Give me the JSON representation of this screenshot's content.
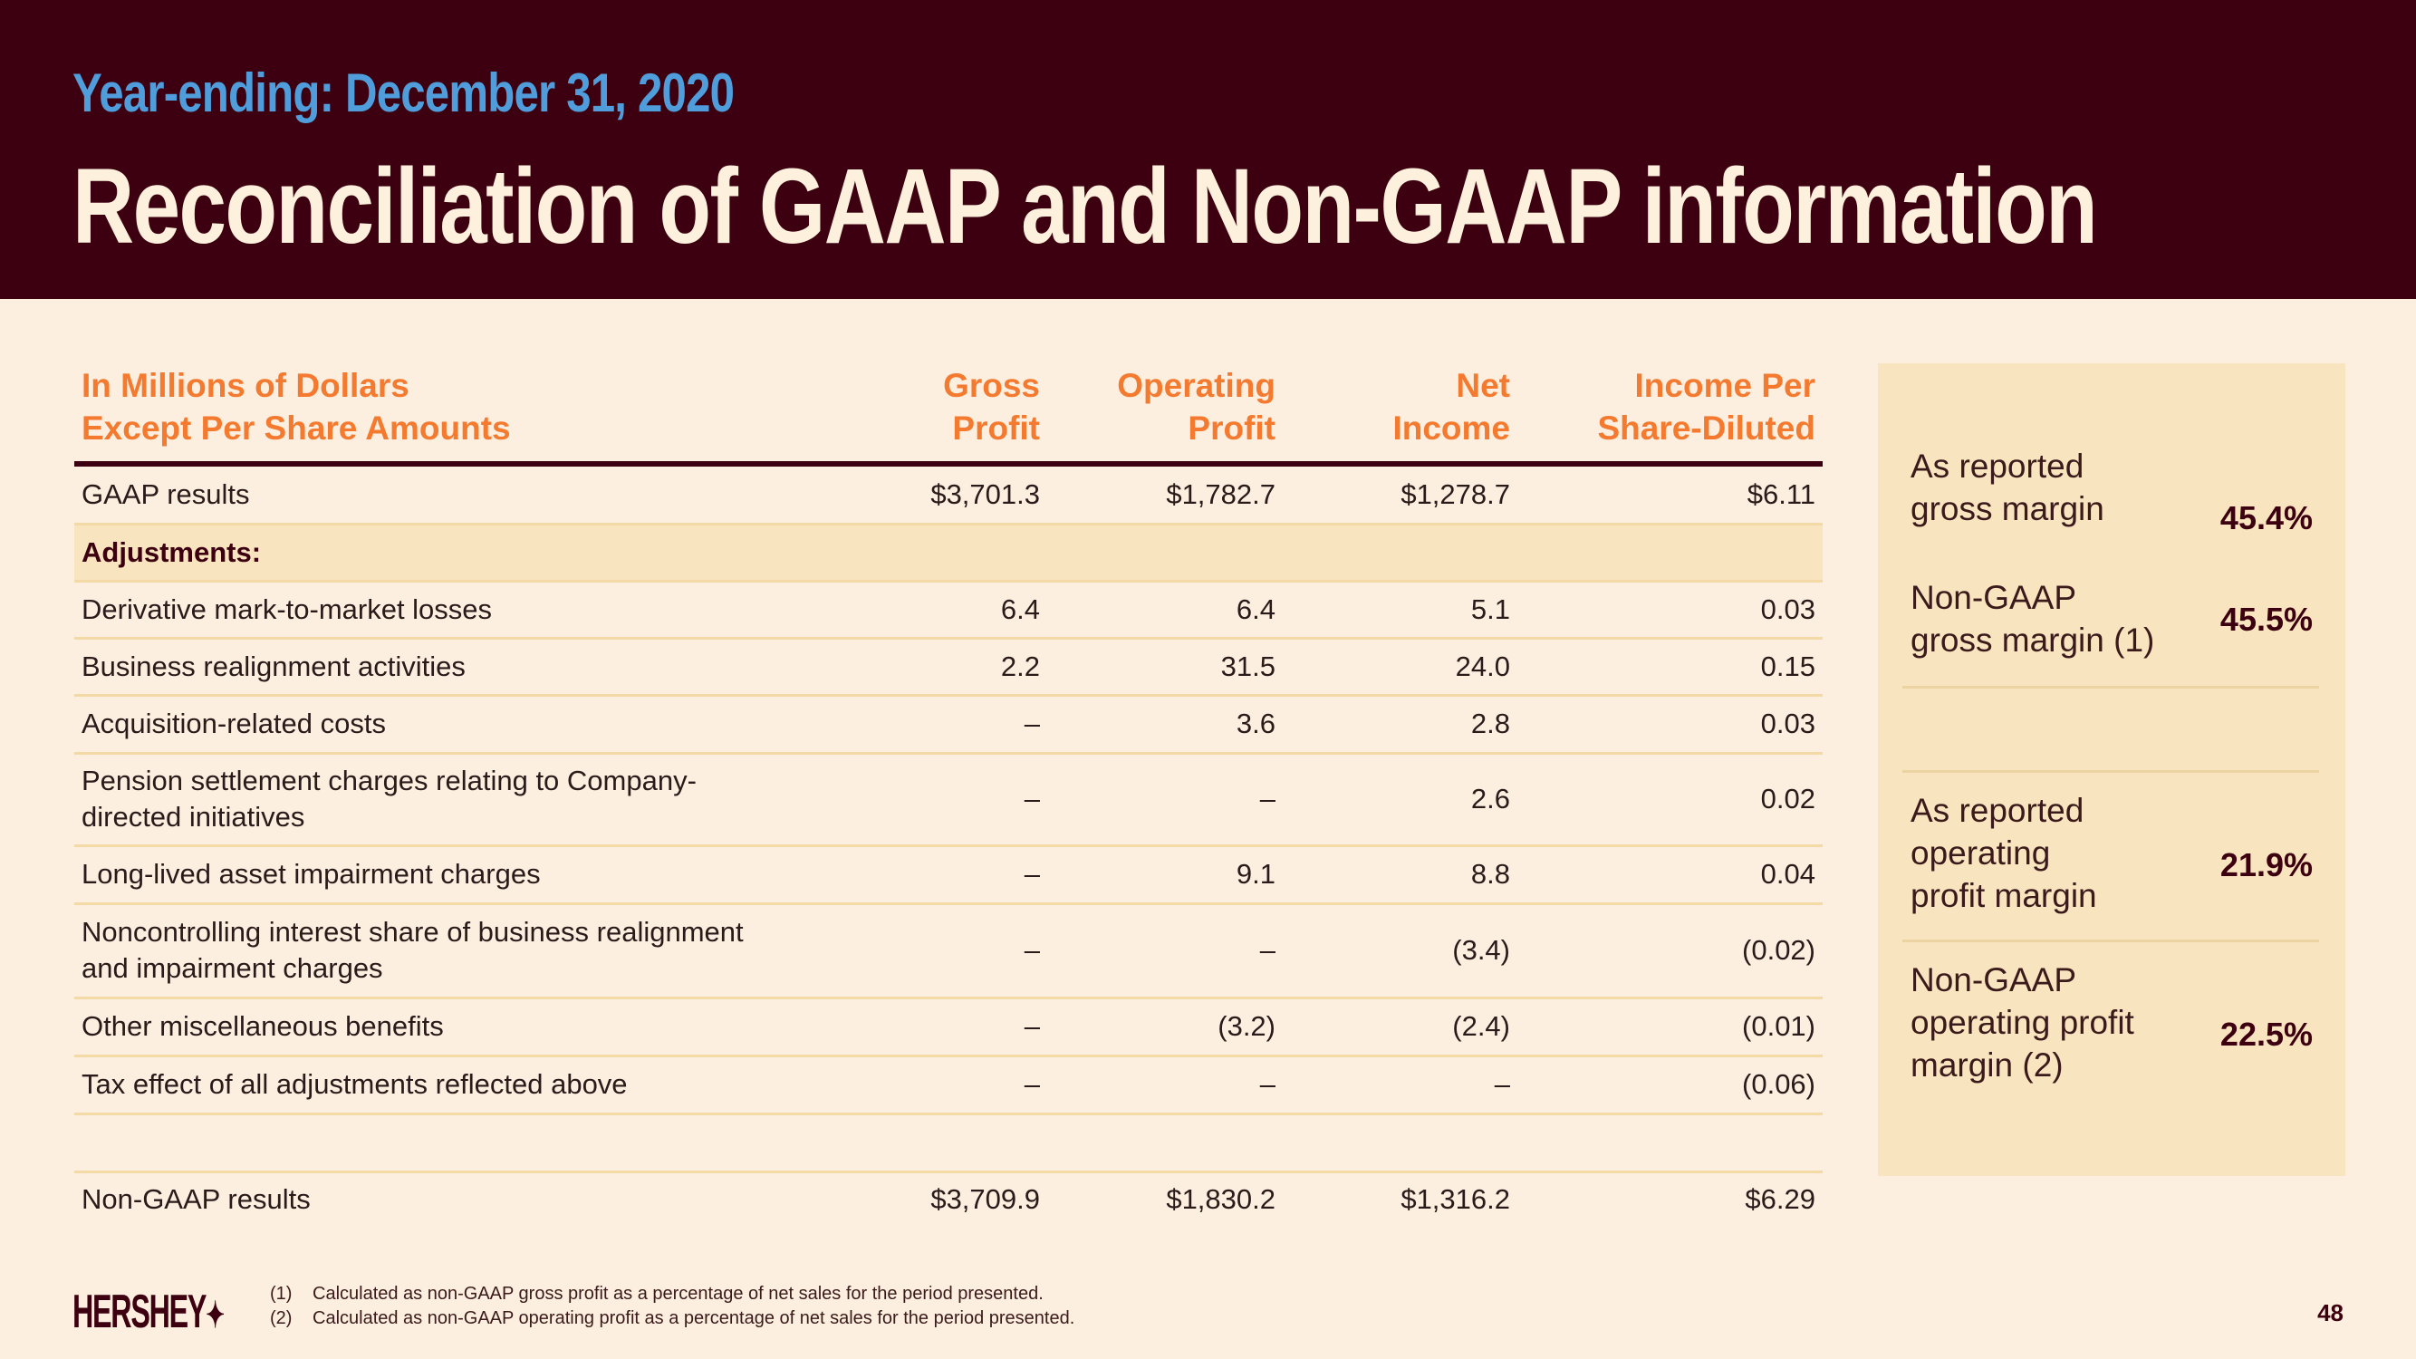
{
  "header": {
    "subtitle": "Year-ending: December 31, 2020",
    "title": "Reconciliation of GAAP and Non-GAAP information"
  },
  "table": {
    "headers": [
      [
        "In Millions of Dollars",
        "Except Per Share Amounts"
      ],
      [
        "Gross",
        "Profit"
      ],
      [
        "Operating",
        "Profit"
      ],
      [
        "Net",
        "Income"
      ],
      [
        "Income Per",
        "Share-Diluted"
      ]
    ],
    "rows": [
      {
        "label": "GAAP results",
        "values": [
          "$3,701.3",
          "$1,782.7",
          "$1,278.7",
          "$6.11"
        ]
      },
      {
        "label": "Adjustments:",
        "values": [
          "",
          "",
          "",
          ""
        ]
      },
      {
        "label": "Derivative mark-to-market losses",
        "values": [
          "6.4",
          "6.4",
          "5.1",
          "0.03"
        ]
      },
      {
        "label": "Business realignment activities",
        "values": [
          "2.2",
          "31.5",
          "24.0",
          "0.15"
        ]
      },
      {
        "label": "Acquisition-related costs",
        "values": [
          "–",
          "3.6",
          "2.8",
          "0.03"
        ]
      },
      {
        "label": "Pension settlement charges relating to Company-\ndirected initiatives",
        "values": [
          "–",
          "–",
          "2.6",
          "0.02"
        ]
      },
      {
        "label": "Long-lived asset impairment charges",
        "values": [
          "–",
          "9.1",
          "8.8",
          "0.04"
        ]
      },
      {
        "label": "Noncontrolling interest share of business realignment\nand impairment charges",
        "values": [
          "–",
          "–",
          "(3.4)",
          "(0.02)"
        ]
      },
      {
        "label": "Other miscellaneous benefits",
        "values": [
          "–",
          "(3.2)",
          "(2.4)",
          "(0.01)"
        ]
      },
      {
        "label": "Tax effect of all adjustments reflected above",
        "values": [
          "–",
          "–",
          "–",
          "(0.06)"
        ]
      },
      {
        "label": "Non-GAAP results",
        "values": [
          "$3,709.9",
          "$1,830.2",
          "$1,316.2",
          "$6.29"
        ]
      }
    ]
  },
  "panel": [
    {
      "label": "As reported\ngross margin",
      "value": "45.4%"
    },
    {
      "label": "Non-GAAP\ngross margin (1)",
      "value": "45.5%"
    },
    {
      "label": "As reported\noperating\nprofit margin",
      "value": "21.9%"
    },
    {
      "label": "Non-GAAP\noperating profit\nmargin (2)",
      "value": "22.5%"
    }
  ],
  "footer": {
    "logo": "HERSHEY'S",
    "notes": [
      {
        "num": "(1)",
        "text": "Calculated as non-GAAP gross profit as a percentage of net sales for the period presented."
      },
      {
        "num": "(2)",
        "text": "Calculated as non-GAAP operating profit as a percentage of net sales for the period presented."
      }
    ],
    "page": "48"
  },
  "colors": {
    "header_bg": "#3d0010",
    "accent_orange": "#f47a30",
    "accent_blue": "#4f9ddb",
    "panel_bg": "#f8e4bf"
  }
}
